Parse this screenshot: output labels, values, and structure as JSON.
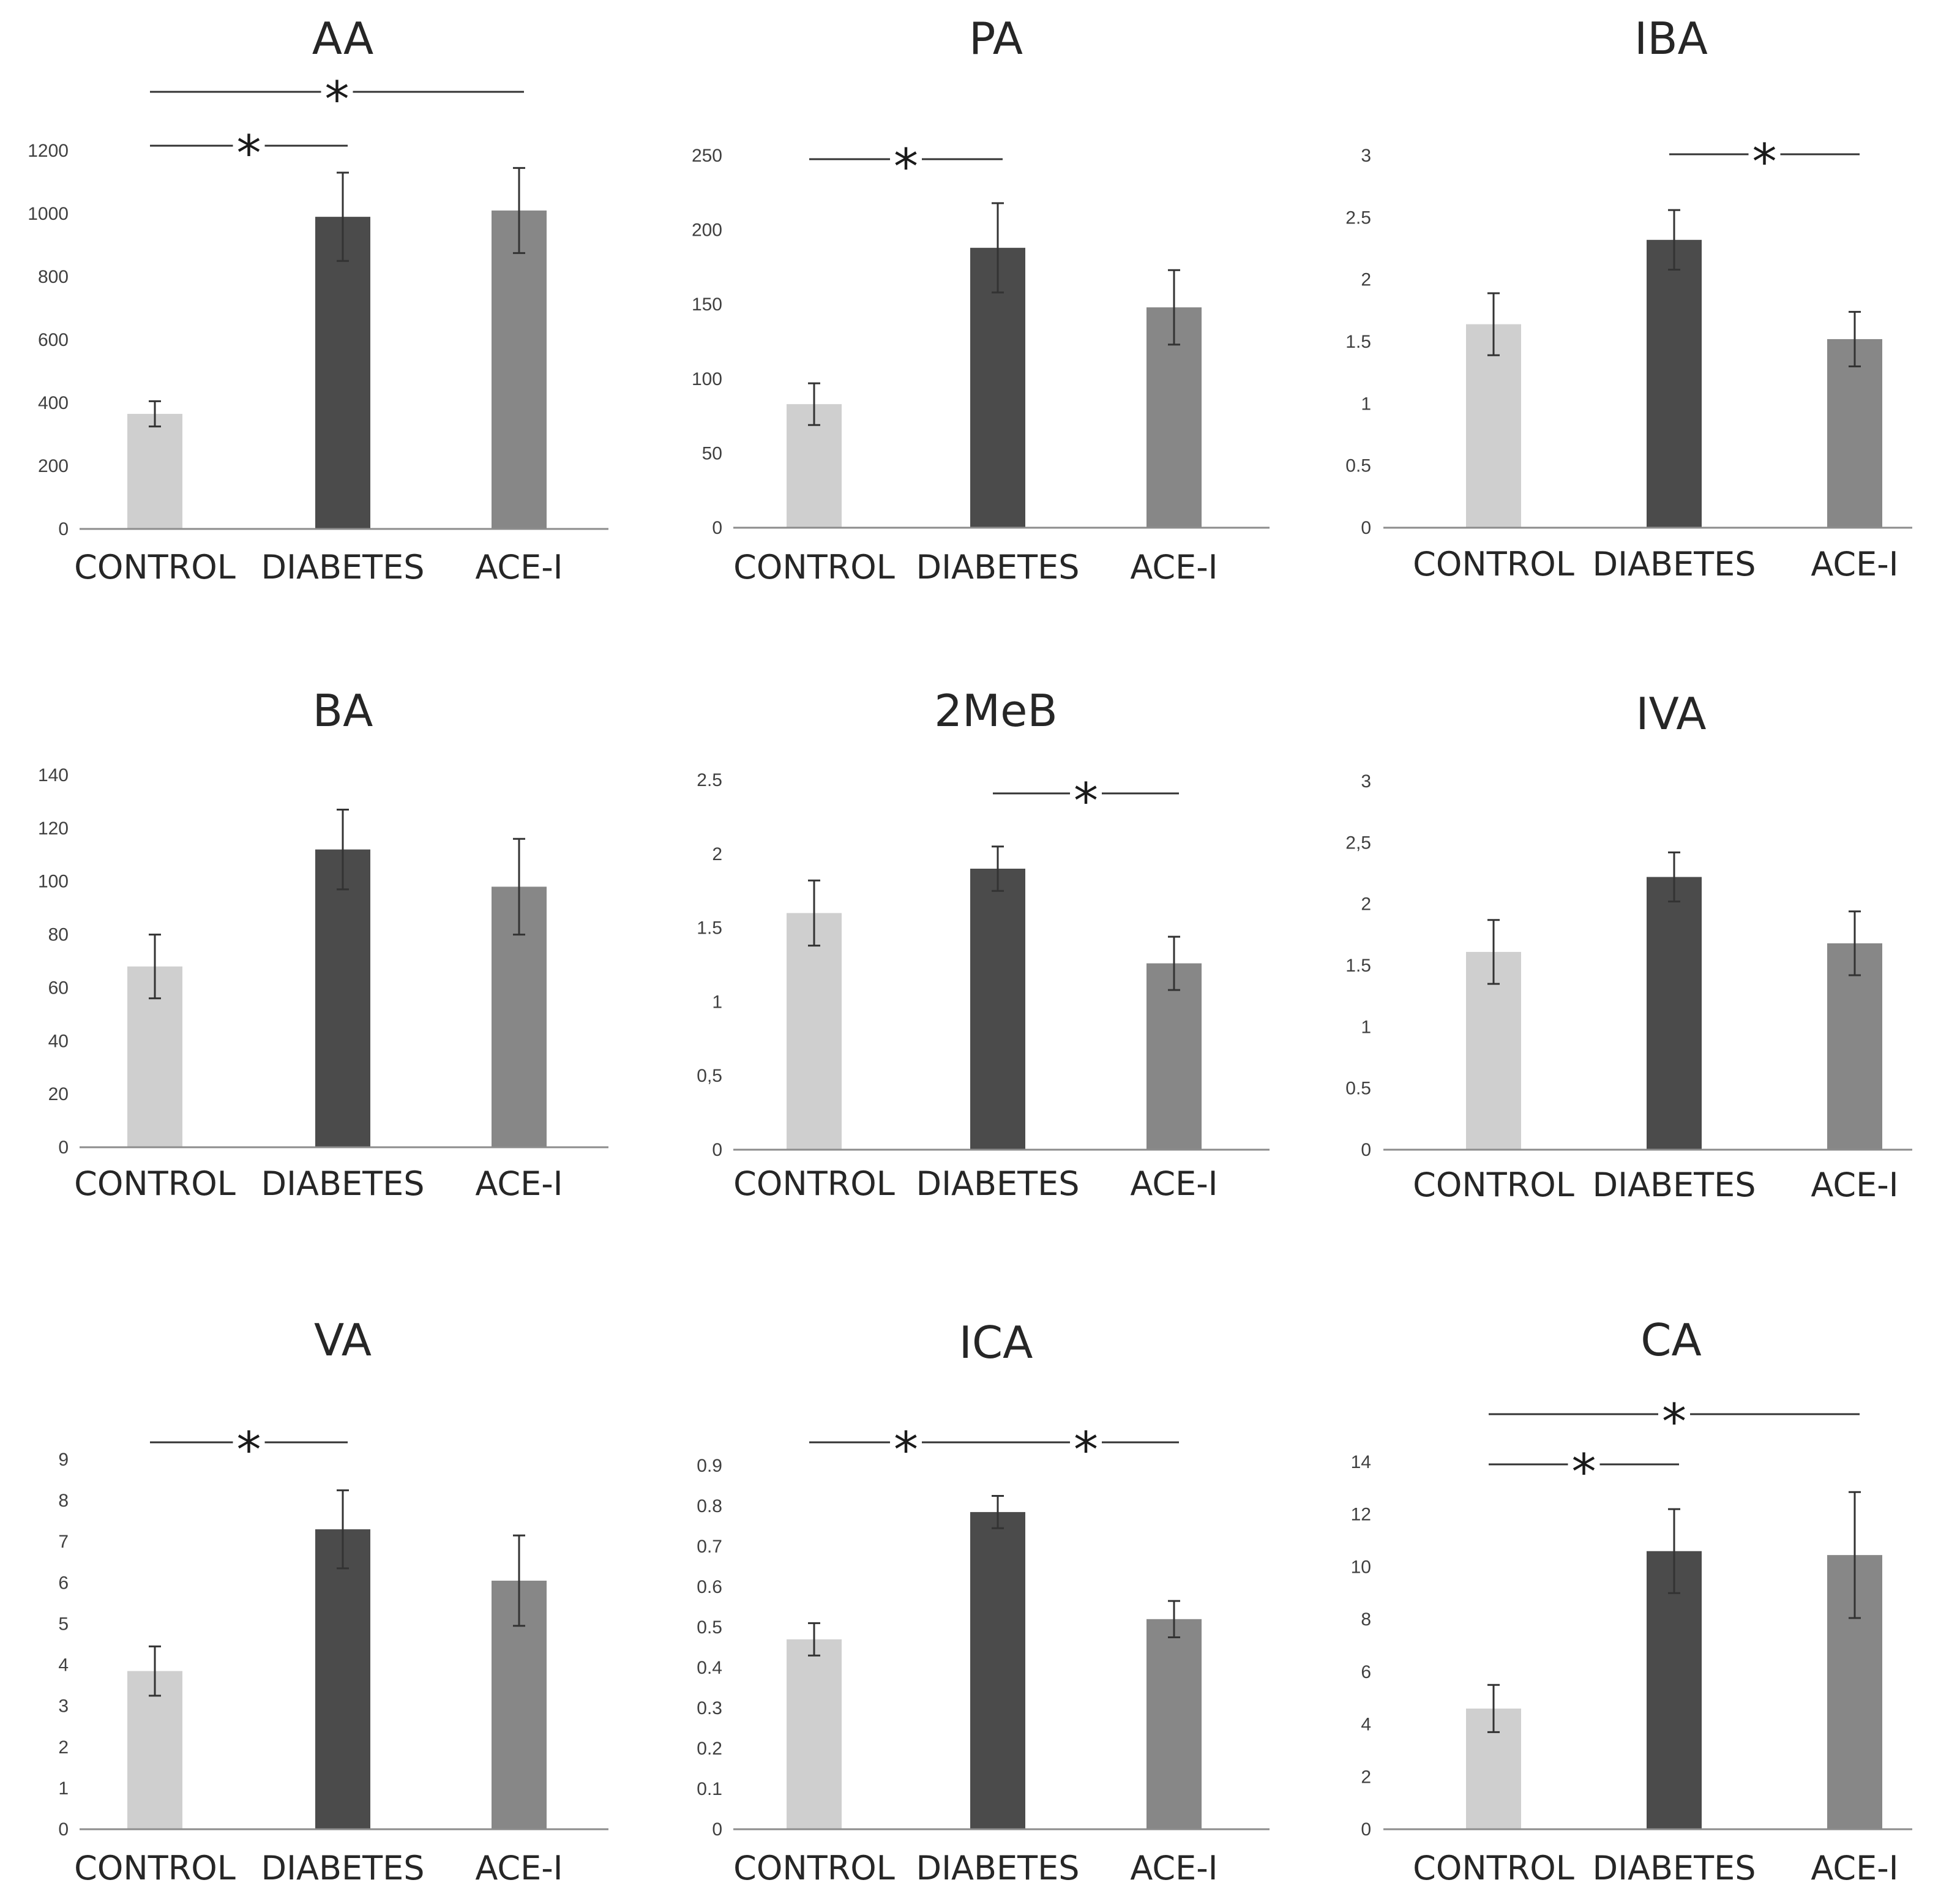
{
  "chart_data": [
    {
      "type": "bar",
      "title": "AA",
      "categories": [
        "CONTROL",
        "DIABETES",
        "ACE-I"
      ],
      "values": [
        365,
        990,
        1010
      ],
      "errors": [
        40,
        140,
        135
      ],
      "ylim": [
        0,
        1200
      ],
      "yticks": [
        "0",
        "200",
        "400",
        "600",
        "800",
        "1000",
        "1200"
      ],
      "colors": [
        "#cfcfcf",
        "#4b4b4b",
        "#878787"
      ],
      "significance": [
        {
          "from": 0,
          "to": 2,
          "label": "*"
        },
        {
          "from": 0,
          "to": 1,
          "label": "*"
        }
      ]
    },
    {
      "type": "bar",
      "title": "PA",
      "categories": [
        "CONTROL",
        "DIABETES",
        "ACE-I"
      ],
      "values": [
        83,
        188,
        148
      ],
      "errors": [
        14,
        30,
        25
      ],
      "ylim": [
        0,
        250
      ],
      "yticks": [
        "0",
        "50",
        "100",
        "150",
        "200",
        "250"
      ],
      "colors": [
        "#cfcfcf",
        "#4b4b4b",
        "#878787"
      ],
      "significance": [
        {
          "from": 0,
          "to": 1,
          "label": "*"
        }
      ]
    },
    {
      "type": "bar",
      "title": "IBA",
      "categories": [
        "CONTROL",
        "DIABETES",
        "ACE-I"
      ],
      "values": [
        1.64,
        2.32,
        1.52
      ],
      "errors": [
        0.25,
        0.24,
        0.22
      ],
      "ylim": [
        0,
        3
      ],
      "yticks": [
        "0",
        "0.5",
        "1",
        "1.5",
        "2",
        "2.5",
        "3"
      ],
      "colors": [
        "#cfcfcf",
        "#4b4b4b",
        "#878787"
      ],
      "significance": [
        {
          "from": 1,
          "to": 2,
          "label": "*"
        }
      ]
    },
    {
      "type": "bar",
      "title": "BA",
      "categories": [
        "CONTROL",
        "DIABETES",
        "ACE-I"
      ],
      "values": [
        68,
        112,
        98
      ],
      "errors": [
        12,
        15,
        18
      ],
      "ylim": [
        0,
        140
      ],
      "yticks": [
        "0",
        "20",
        "40",
        "60",
        "80",
        "100",
        "120",
        "140"
      ],
      "colors": [
        "#cfcfcf",
        "#4b4b4b",
        "#878787"
      ],
      "significance": []
    },
    {
      "type": "bar",
      "title": "2MeB",
      "categories": [
        "CONTROL",
        "DIABETES",
        "ACE-I"
      ],
      "values": [
        1.6,
        1.9,
        1.26
      ],
      "errors": [
        0.22,
        0.15,
        0.18
      ],
      "ylim": [
        0,
        2.5
      ],
      "yticks": [
        "0",
        "0,5",
        "1",
        "1.5",
        "2",
        "2.5"
      ],
      "colors": [
        "#cfcfcf",
        "#4b4b4b",
        "#878787"
      ],
      "significance": [
        {
          "from": 1,
          "to": 2,
          "label": "*"
        }
      ]
    },
    {
      "type": "bar",
      "title": "IVA",
      "categories": [
        "CONTROL",
        "DIABETES",
        "ACE-I"
      ],
      "values": [
        1.61,
        2.22,
        1.68
      ],
      "errors": [
        0.26,
        0.2,
        0.26
      ],
      "ylim": [
        0,
        3
      ],
      "yticks": [
        "0",
        "0.5",
        "1",
        "1.5",
        "2",
        "2,5",
        "3"
      ],
      "colors": [
        "#cfcfcf",
        "#4b4b4b",
        "#878787"
      ],
      "significance": []
    },
    {
      "type": "bar",
      "title": "VA",
      "categories": [
        "CONTROL",
        "DIABETES",
        "ACE-I"
      ],
      "values": [
        3.85,
        7.3,
        6.05
      ],
      "errors": [
        0.6,
        0.95,
        1.1
      ],
      "ylim": [
        0,
        9
      ],
      "yticks": [
        "0",
        "1",
        "2",
        "3",
        "4",
        "5",
        "6",
        "7",
        "8",
        "9"
      ],
      "colors": [
        "#cfcfcf",
        "#4b4b4b",
        "#878787"
      ],
      "significance": [
        {
          "from": 0,
          "to": 1,
          "label": "*"
        }
      ]
    },
    {
      "type": "bar",
      "title": "ICA",
      "categories": [
        "CONTROL",
        "DIABETES",
        "ACE-I"
      ],
      "values": [
        0.47,
        0.785,
        0.52
      ],
      "errors": [
        0.04,
        0.04,
        0.045
      ],
      "ylim": [
        0,
        0.9
      ],
      "yticks": [
        "0",
        "0.1",
        "0.2",
        "0.3",
        "0.4",
        "0.5",
        "0.6",
        "0.7",
        "0.8",
        "0.9"
      ],
      "colors": [
        "#cfcfcf",
        "#4b4b4b",
        "#878787"
      ],
      "significance": [
        {
          "from": 0,
          "to": 1,
          "label": "*"
        },
        {
          "from": 1,
          "to": 2,
          "label": "*"
        }
      ]
    },
    {
      "type": "bar",
      "title": "CA",
      "categories": [
        "CONTROL",
        "DIABETES",
        "ACE-I"
      ],
      "values": [
        4.6,
        10.6,
        10.45
      ],
      "errors": [
        0.9,
        1.6,
        2.4
      ],
      "ylim": [
        0,
        14
      ],
      "yticks": [
        "0",
        "2",
        "4",
        "6",
        "8",
        "10",
        "12",
        "14"
      ],
      "colors": [
        "#cfcfcf",
        "#4b4b4b",
        "#878787"
      ],
      "significance": [
        {
          "from": 0,
          "to": 2,
          "label": "*"
        },
        {
          "from": 0,
          "to": 1,
          "label": "*"
        }
      ]
    }
  ]
}
